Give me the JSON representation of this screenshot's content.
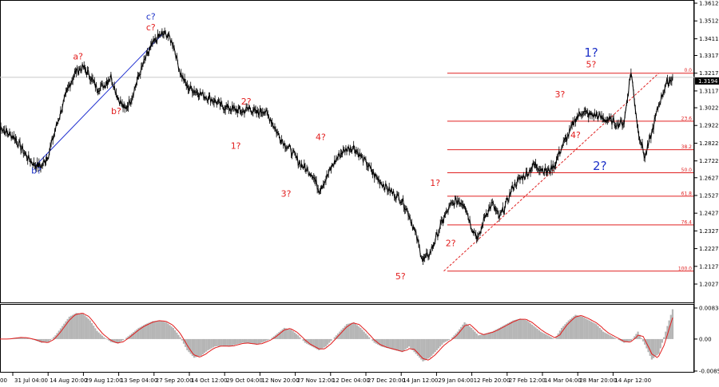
{
  "chart_data": {
    "type": "line",
    "instrument_price_current": "1.3194",
    "main_panel": {
      "y_ticks": [
        "1.3612",
        "1.3512",
        "1.3411",
        "1.3317",
        "1.3217",
        "1.3117",
        "1.3022",
        "1.2922",
        "1.2822",
        "1.2722",
        "1.2627",
        "1.2527",
        "1.2427",
        "1.2327",
        "1.2227",
        "1.2127",
        "1.2027"
      ],
      "ylim": [
        1.2027,
        1.3612
      ],
      "current_price": 1.3194,
      "x_ticks": [
        "31 Jul 04:00",
        "14 Aug 20:00",
        "29 Aug 12:00",
        "13 Sep 04:00",
        "27 Sep 20:00",
        "14 Oct 12:00",
        "29 Oct 04:00",
        "12 Nov 20:00",
        "27 Nov 12:00",
        "12 Dec 04:00",
        "27 Dec 20:00",
        "14 Jan 12:00",
        "29 Jan 04:00",
        "12 Feb 20:00",
        "27 Feb 12:00",
        "14 Mar 04:00",
        "28 Mar 20:00",
        "14 Apr 12:00"
      ],
      "x_tick_prefix": "00",
      "series": [
        {
          "x": [
            0,
            2,
            4,
            6,
            8,
            10,
            12,
            14,
            16,
            18,
            20,
            22,
            24,
            26,
            28,
            30,
            32,
            34,
            36,
            38,
            40,
            42,
            44,
            46,
            48,
            50,
            52,
            54,
            56,
            58,
            60,
            62,
            64,
            66,
            68,
            70,
            72,
            74,
            76,
            78,
            80,
            82,
            84,
            86,
            88,
            90,
            92,
            94,
            96,
            98,
            100,
            102,
            104,
            106,
            108,
            110,
            112,
            114,
            116,
            118,
            120,
            122,
            124,
            126,
            128,
            130,
            132,
            134,
            136,
            138,
            140,
            142,
            144,
            146,
            148,
            150,
            152,
            154,
            156,
            158,
            160,
            162,
            164,
            166,
            168,
            170,
            172,
            174,
            176,
            178,
            180,
            182,
            184,
            186,
            188,
            190,
            192,
            194
          ],
          "values": [
            1.292,
            1.288,
            1.286,
            1.28,
            1.274,
            1.27,
            1.269,
            1.276,
            1.29,
            1.303,
            1.315,
            1.323,
            1.325,
            1.32,
            1.313,
            1.315,
            1.32,
            1.308,
            1.301,
            1.308,
            1.32,
            1.33,
            1.338,
            1.343,
            1.344,
            1.338,
            1.322,
            1.314,
            1.312,
            1.31,
            1.308,
            1.306,
            1.303,
            1.302,
            1.301,
            1.3,
            1.302,
            1.299,
            1.301,
            1.296,
            1.288,
            1.282,
            1.278,
            1.272,
            1.268,
            1.265,
            1.256,
            1.262,
            1.27,
            1.276,
            1.279,
            1.28,
            1.275,
            1.27,
            1.264,
            1.26,
            1.256,
            1.253,
            1.25,
            1.242,
            1.23,
            1.216,
            1.22,
            1.23,
            1.24,
            1.247,
            1.25,
            1.248,
            1.235,
            1.228,
            1.242,
            1.248,
            1.24,
            1.248,
            1.258,
            1.262,
            1.265,
            1.27,
            1.268,
            1.266,
            1.27,
            1.28,
            1.287,
            1.296,
            1.3,
            1.298,
            1.298,
            1.296,
            1.295,
            1.293,
            1.294,
            1.323,
            1.29,
            1.274,
            1.288,
            1.304,
            1.315,
            1.3194
          ]
        }
      ],
      "fibonacci": [
        {
          "label": "0.0",
          "price": 1.3217
        },
        {
          "label": "23.6",
          "price": 1.2946
        },
        {
          "label": "38.2",
          "price": 1.2785
        },
        {
          "label": "50.0",
          "price": 1.2655
        },
        {
          "label": "61.8",
          "price": 1.2523
        },
        {
          "label": "76.4",
          "price": 1.2361
        },
        {
          "label": "100.0",
          "price": 1.21
        }
      ],
      "wave_labels": [
        {
          "text": "a?",
          "color": "#e21d1d"
        },
        {
          "text": "b?",
          "color": "#1f33c8"
        },
        {
          "text": "b?",
          "color": "#e21d1d"
        },
        {
          "text": "c?",
          "color": "#1f33c8"
        },
        {
          "text": "c?",
          "color": "#e21d1d"
        },
        {
          "text": "1?",
          "color": "#e21d1d"
        },
        {
          "text": "2?",
          "color": "#e21d1d"
        },
        {
          "text": "3?",
          "color": "#e21d1d"
        },
        {
          "text": "4?",
          "color": "#e21d1d"
        },
        {
          "text": "5?",
          "color": "#e21d1d"
        },
        {
          "text": "1?",
          "color": "#e21d1d"
        },
        {
          "text": "2?",
          "color": "#e21d1d"
        },
        {
          "text": "3?",
          "color": "#e21d1d"
        },
        {
          "text": "4?",
          "color": "#e21d1d"
        },
        {
          "text": "5?",
          "color": "#e21d1d"
        },
        {
          "text": "1?",
          "color": "#1f33c8"
        },
        {
          "text": "2?",
          "color": "#1f33c8"
        }
      ]
    },
    "oscillator_panel": {
      "y_ticks": [
        "0.00834",
        "0.00",
        "-0.00859"
      ],
      "ylim": [
        -0.00859,
        0.00834
      ],
      "values": [
        0.0,
        0.0,
        0.0003,
        0.0005,
        0.0002,
        -0.0003,
        -0.001,
        -0.0008,
        0.001,
        0.0035,
        0.006,
        0.007,
        0.0068,
        0.005,
        0.0022,
        0.0005,
        -0.0008,
        -0.0012,
        0.0,
        0.0015,
        0.003,
        0.004,
        0.0048,
        0.005,
        0.0045,
        0.003,
        0.0005,
        -0.003,
        -0.005,
        -0.0045,
        -0.003,
        -0.002,
        -0.0018,
        -0.002,
        -0.0015,
        -0.001,
        -0.0012,
        -0.0015,
        -0.0008,
        0.0,
        0.0015,
        0.003,
        0.0025,
        0.001,
        -0.001,
        -0.002,
        -0.003,
        -0.002,
        0.0,
        0.002,
        0.004,
        0.0045,
        0.003,
        0.001,
        -0.001,
        -0.002,
        -0.0025,
        -0.003,
        -0.0035,
        -0.002,
        -0.004,
        -0.006,
        -0.005,
        -0.003,
        -0.001,
        0.0,
        0.002,
        0.0045,
        0.003,
        0.001,
        0.0015,
        0.002,
        0.003,
        0.004,
        0.005,
        0.0055,
        0.005,
        0.0035,
        0.002,
        0.001,
        0.0,
        0.003,
        0.005,
        0.0065,
        0.006,
        0.005,
        0.004,
        0.002,
        0.001,
        0.0,
        -0.001,
        -0.0005,
        0.002,
        -0.0015,
        -0.0055,
        -0.004,
        0.002,
        0.008
      ]
    }
  }
}
